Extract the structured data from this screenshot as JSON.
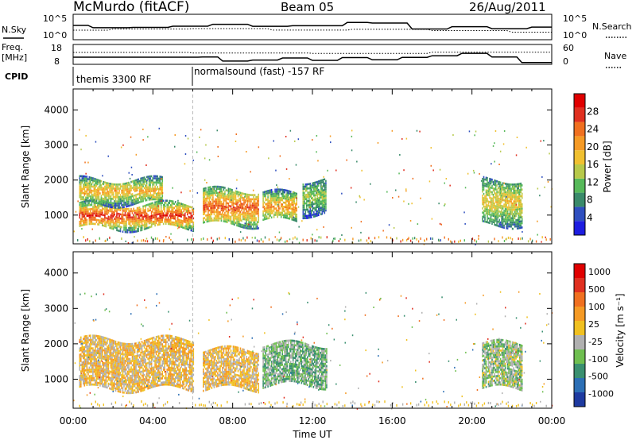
{
  "header": {
    "station": "McMurdo (fitACF)",
    "beam": "Beam 05",
    "date": "26/Aug/2011"
  },
  "top_panels": {
    "nsky_label": "N.Sky",
    "nsearch_label": "N.Search",
    "freq_label_line1": "Freq.",
    "freq_label_line2": "[MHz]",
    "nave_label": "Nave",
    "cpid_label": "CPID",
    "left_ticks_noise": [
      "10^5",
      "10^0"
    ],
    "right_ticks_noise": [
      "10^5",
      "10^0"
    ],
    "left_ticks_freq": [
      "18",
      "8"
    ],
    "right_ticks_freq": [
      "60",
      "0"
    ],
    "cpid_segments": [
      {
        "label": "themis 3300 RF",
        "start_hour": 0
      },
      {
        "label": "normalsound (fast) -157 RF",
        "start_hour": 6
      }
    ]
  },
  "axes": {
    "xlabel": "Time UT",
    "x_ticks": [
      "00:00",
      "04:00",
      "08:00",
      "12:00",
      "16:00",
      "20:00",
      "00:00"
    ],
    "ylabel": "Slant Range [km]",
    "y_ticks": [
      "1000",
      "2000",
      "3000",
      "4000"
    ]
  },
  "colorbars": {
    "power": {
      "label": "Power [dB]",
      "ticks": [
        "4",
        "8",
        "12",
        "16",
        "20",
        "24",
        "28"
      ],
      "colors": [
        "#1d1de0",
        "#2f4fbf",
        "#3a8a6a",
        "#57b95a",
        "#b7c94a",
        "#f0c030",
        "#f59a25",
        "#f07020",
        "#e03020",
        "#e00000"
      ]
    },
    "velocity": {
      "label": "Velocity [m s⁻¹]",
      "ticks": [
        "1000",
        "500",
        "100",
        "25",
        "-25",
        "-100",
        "-500",
        "-1000"
      ],
      "colors": [
        "#1e3aa0",
        "#2c6fb5",
        "#3a9070",
        "#6fbf50",
        "#b0b0b0",
        "#f0c020",
        "#f59a25",
        "#f07020",
        "#e03020",
        "#e00000"
      ]
    }
  },
  "chart_data": [
    {
      "type": "heatmap",
      "title": "Power",
      "xlabel": "Time UT",
      "ylabel": "Slant Range [km]",
      "xlim": [
        0,
        24
      ],
      "ylim": [
        180,
        4600
      ],
      "colorbar_label": "Power [dB]",
      "colorbar_range": [
        0,
        32
      ],
      "features": [
        {
          "start_hour": 0.3,
          "end_hour": 6.0,
          "range_km": [
            600,
            1300
          ],
          "power_db": 28
        },
        {
          "start_hour": 0.3,
          "end_hour": 4.5,
          "range_km": [
            1300,
            2000
          ],
          "power_db": 20
        },
        {
          "start_hour": 6.5,
          "end_hour": 9.3,
          "range_km": [
            700,
            1700
          ],
          "power_db": 26
        },
        {
          "start_hour": 9.5,
          "end_hour": 11.2,
          "range_km": [
            800,
            1600
          ],
          "power_db": 22
        },
        {
          "start_hour": 11.5,
          "end_hour": 12.7,
          "range_km": [
            1000,
            2000
          ],
          "power_db": 14
        },
        {
          "start_hour": 20.5,
          "end_hour": 22.5,
          "range_km": [
            700,
            2000
          ],
          "power_db": 18
        }
      ]
    },
    {
      "type": "heatmap",
      "title": "Velocity",
      "xlabel": "Time UT",
      "ylabel": "Slant Range [km]",
      "xlim": [
        0,
        24
      ],
      "ylim": [
        180,
        4600
      ],
      "colorbar_label": "Velocity [m s⁻¹]",
      "colorbar_range": [
        -1000,
        1000
      ],
      "features": [
        {
          "start_hour": 0.3,
          "end_hour": 6.0,
          "range_km": [
            700,
            2100
          ],
          "velocity_ms": 100
        },
        {
          "start_hour": 6.5,
          "end_hour": 9.3,
          "range_km": [
            700,
            1800
          ],
          "velocity_ms": 100
        },
        {
          "start_hour": 9.5,
          "end_hour": 12.7,
          "range_km": [
            800,
            2000
          ],
          "velocity_ms": -300
        },
        {
          "start_hour": 20.5,
          "end_hour": 22.5,
          "range_km": [
            700,
            2000
          ],
          "velocity_ms": -200
        }
      ]
    }
  ]
}
